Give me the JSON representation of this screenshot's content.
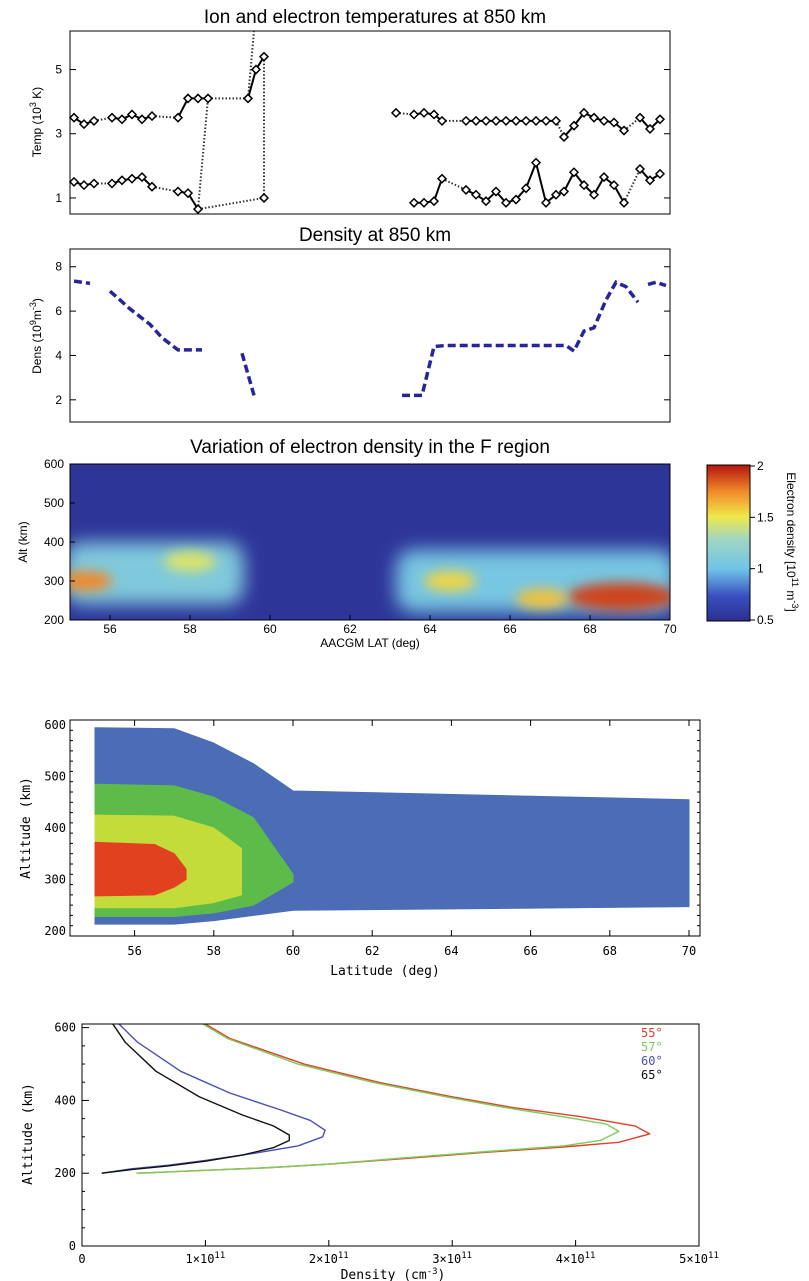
{
  "chart_data": [
    {
      "type": "line",
      "title": "Ion and electron temperatures at 850 km",
      "ylabel_main": "Temp (10",
      "ylabel_sup": "3",
      "ylabel_tail": " K)",
      "xlim": [
        55,
        70
      ],
      "ylim": [
        0.5,
        6.2
      ],
      "yticks": [
        "1",
        "3",
        "5"
      ],
      "series": [
        {
          "segments": [
            [
              [
                55.1,
                3.5
              ],
              [
                55.35,
                3.3
              ],
              [
                55.6,
                3.4
              ]
            ],
            [
              [
                56.05,
                3.5
              ],
              [
                56.3,
                3.45
              ],
              [
                56.55,
                3.6
              ],
              [
                56.8,
                3.45
              ],
              [
                57.05,
                3.55
              ]
            ],
            [
              [
                57.7,
                3.5
              ],
              [
                57.95,
                4.1
              ],
              [
                58.2,
                4.1
              ],
              [
                58.45,
                4.1
              ]
            ],
            [
              [
                59.45,
                4.1
              ],
              [
                59.65,
                5.0
              ],
              [
                59.85,
                5.4
              ]
            ],
            [
              [
                63.15,
                3.65
              ]
            ],
            [
              [
                63.6,
                3.6
              ],
              [
                63.85,
                3.65
              ],
              [
                64.1,
                3.6
              ],
              [
                64.3,
                3.4
              ]
            ],
            [
              [
                64.9,
                3.4
              ],
              [
                65.15,
                3.4
              ],
              [
                65.4,
                3.4
              ],
              [
                65.65,
                3.4
              ],
              [
                65.9,
                3.4
              ],
              [
                66.15,
                3.4
              ],
              [
                66.4,
                3.4
              ],
              [
                66.65,
                3.4
              ],
              [
                66.9,
                3.4
              ],
              [
                67.15,
                3.4
              ]
            ],
            [
              [
                67.35,
                2.9
              ],
              [
                67.6,
                3.25
              ],
              [
                67.85,
                3.65
              ],
              [
                68.1,
                3.5
              ],
              [
                68.35,
                3.4
              ],
              [
                68.6,
                3.35
              ],
              [
                68.85,
                3.1
              ]
            ],
            [
              [
                69.25,
                3.5
              ],
              [
                69.5,
                3.15
              ],
              [
                69.75,
                3.45
              ]
            ]
          ]
        },
        {
          "segments": [
            [
              [
                55.1,
                1.5
              ],
              [
                55.35,
                1.4
              ],
              [
                55.6,
                1.45
              ]
            ],
            [
              [
                56.05,
                1.45
              ],
              [
                56.3,
                1.55
              ],
              [
                56.55,
                1.6
              ],
              [
                56.8,
                1.65
              ],
              [
                57.05,
                1.35
              ]
            ],
            [
              [
                57.7,
                1.2
              ],
              [
                57.95,
                1.15
              ],
              [
                58.2,
                0.65
              ]
            ],
            [
              [
                59.85,
                1.0
              ]
            ],
            [
              [
                63.6,
                0.85
              ],
              [
                63.85,
                0.85
              ],
              [
                64.1,
                0.9
              ],
              [
                64.3,
                1.6
              ]
            ],
            [
              [
                64.9,
                1.25
              ],
              [
                65.15,
                1.1
              ],
              [
                65.4,
                0.9
              ],
              [
                65.65,
                1.2
              ],
              [
                65.9,
                0.85
              ],
              [
                66.15,
                0.95
              ],
              [
                66.4,
                1.3
              ],
              [
                66.65,
                2.1
              ],
              [
                66.9,
                0.85
              ],
              [
                67.15,
                1.1
              ],
              [
                67.35,
                1.2
              ],
              [
                67.6,
                1.8
              ],
              [
                67.85,
                1.4
              ],
              [
                68.1,
                1.1
              ],
              [
                68.35,
                1.65
              ],
              [
                68.6,
                1.4
              ],
              [
                68.85,
                0.85
              ]
            ],
            [
              [
                69.25,
                1.9
              ],
              [
                69.5,
                1.55
              ],
              [
                69.75,
                1.75
              ]
            ]
          ]
        }
      ]
    },
    {
      "type": "line",
      "title": "Density at 850 km",
      "ylabel_main": "Dens (10",
      "ylabel_sup": "9",
      "ylabel_mid": "m",
      "ylabel_sup2": "-3",
      "ylabel_tail": ")",
      "xlim": [
        55,
        70
      ],
      "ylim": [
        1.0,
        8.8
      ],
      "yticks": [
        "2",
        "4",
        "6",
        "8"
      ],
      "color": "#26269a",
      "segments": [
        [
          [
            55.1,
            7.35
          ],
          [
            55.5,
            7.25
          ]
        ],
        [
          [
            56.0,
            6.9
          ],
          [
            56.5,
            6.1
          ],
          [
            57.0,
            5.4
          ],
          [
            57.3,
            4.8
          ],
          [
            57.7,
            4.25
          ],
          [
            58.3,
            4.25
          ]
        ],
        [
          [
            59.3,
            4.1
          ],
          [
            59.6,
            2.2
          ]
        ],
        [
          [
            63.3,
            2.2
          ],
          [
            63.8,
            2.2
          ],
          [
            64.1,
            4.4
          ],
          [
            64.4,
            4.45
          ],
          [
            67.4,
            4.45
          ],
          [
            67.6,
            4.2
          ],
          [
            67.85,
            5.1
          ],
          [
            68.1,
            5.25
          ],
          [
            68.4,
            6.5
          ],
          [
            68.65,
            7.3
          ],
          [
            68.9,
            7.1
          ],
          [
            69.2,
            6.4
          ]
        ],
        [
          [
            69.45,
            7.2
          ],
          [
            69.65,
            7.3
          ],
          [
            69.9,
            7.15
          ]
        ]
      ]
    },
    {
      "type": "heatmap",
      "title": "Variation of electron density in the F region",
      "xlabel": "AACGM LAT (deg)",
      "ylabel": "Alt (km)",
      "xlim": [
        55,
        70
      ],
      "ylim": [
        200,
        600
      ],
      "xticks": [
        "56",
        "58",
        "60",
        "62",
        "64",
        "66",
        "68",
        "70"
      ],
      "yticks": [
        "200",
        "300",
        "400",
        "500",
        "600"
      ],
      "colorbar": {
        "ticks": [
          "0.5",
          "1",
          "1.5",
          "2"
        ],
        "range": [
          0.5,
          2
        ],
        "label_main": "Electron density [10",
        "label_sup": "11",
        "label_mid": " m",
        "label_sup2": "-3",
        "label_tail": "]"
      },
      "background_value": 0.55,
      "features": [
        {
          "type": "band",
          "lat": [
            55,
            59.2
          ],
          "alt": [
            240,
            400
          ],
          "value": 1.1
        },
        {
          "type": "blob",
          "lat": 55.4,
          "alt": 300,
          "value": 1.75
        },
        {
          "type": "blob",
          "lat": 58.0,
          "alt": 350,
          "value": 1.45
        },
        {
          "type": "band",
          "lat": [
            63.3,
            70
          ],
          "alt": [
            220,
            380
          ],
          "value": 1.05
        },
        {
          "type": "blob",
          "lat": 64.5,
          "alt": 300,
          "value": 1.55
        },
        {
          "type": "blob",
          "lat": 68.8,
          "alt": 260,
          "value": 1.9
        },
        {
          "type": "blob",
          "lat": 66.8,
          "alt": 255,
          "value": 1.6
        }
      ]
    },
    {
      "type": "area",
      "xlabel": "Latitude (deg)",
      "ylabel": "Altitude (km)",
      "xlim": [
        55,
        70
      ],
      "ylim": [
        190,
        610
      ],
      "xticks": [
        "56",
        "58",
        "60",
        "62",
        "64",
        "66",
        "68",
        "70"
      ],
      "yticks": [
        "200",
        "300",
        "400",
        "500",
        "600"
      ],
      "levels": [
        {
          "color": "#4a6db5",
          "upper": [
            [
              55,
              595
            ],
            [
              57,
              593
            ],
            [
              58,
              565
            ],
            [
              59,
              525
            ],
            [
              60,
              472
            ],
            [
              70,
              455
            ]
          ],
          "lower": [
            [
              55,
              213
            ],
            [
              57,
              213
            ],
            [
              58,
              220
            ],
            [
              59,
              230
            ],
            [
              60,
              240
            ],
            [
              70,
              247
            ]
          ]
        },
        {
          "color": "#5dbb4a",
          "upper": [
            [
              55,
              485
            ],
            [
              57,
              482
            ],
            [
              58,
              460
            ],
            [
              59,
              420
            ],
            [
              60,
              310
            ]
          ],
          "lower": [
            [
              55,
              228
            ],
            [
              57,
              228
            ],
            [
              58,
              235
            ],
            [
              59,
              250
            ],
            [
              60,
              295
            ]
          ]
        },
        {
          "color": "#c4dc3a",
          "upper": [
            [
              55,
              425
            ],
            [
              57,
              423
            ],
            [
              58,
              400
            ],
            [
              58.7,
              360
            ],
            [
              58.7,
              300
            ]
          ],
          "lower": [
            [
              55,
              245
            ],
            [
              57,
              245
            ],
            [
              58,
              255
            ],
            [
              58.7,
              270
            ],
            [
              58.7,
              300
            ]
          ]
        },
        {
          "color": "#e2411f",
          "upper": [
            [
              55,
              372
            ],
            [
              56.5,
              368
            ],
            [
              57,
              350
            ],
            [
              57.3,
              320
            ],
            [
              57.3,
              312
            ]
          ],
          "lower": [
            [
              55,
              268
            ],
            [
              56.5,
              270
            ],
            [
              57,
              285
            ],
            [
              57.3,
              300
            ],
            [
              57.3,
              312
            ]
          ]
        }
      ]
    },
    {
      "type": "line",
      "xlabel_main": "Density (cm",
      "xlabel_sup": "-3",
      "xlabel_tail": ")",
      "ylabel": "Altitude (km)",
      "xlim": [
        0,
        500000000000.0
      ],
      "ylim": [
        0,
        610
      ],
      "xticks": [
        "0",
        "1×10",
        "2×10",
        "3×10",
        "4×10",
        "5×10"
      ],
      "xtick_exp": "11",
      "yticks": [
        "0",
        "200",
        "400",
        "600"
      ],
      "legend": [
        "55°",
        "57°",
        "60°",
        "65°"
      ],
      "series": [
        {
          "name": "55°",
          "color": "#e0412a",
          "x": [
            46000000000.0,
            100000000000.0,
            150000000000.0,
            200000000000.0,
            260000000000.0,
            330000000000.0,
            390000000000.0,
            435000000000.0,
            460000000000.0,
            448000000000.0,
            405000000000.0,
            350000000000.0,
            300000000000.0,
            240000000000.0,
            180000000000.0,
            120000000000.0,
            100000000000.0
          ],
          "y": [
            200,
            208,
            215,
            225,
            240,
            258,
            272,
            285,
            308,
            330,
            355,
            380,
            410,
            450,
            500,
            570,
            610
          ]
        },
        {
          "name": "57°",
          "color": "#7ccc5a",
          "x": [
            44000000000.0,
            100000000000.0,
            150000000000.0,
            200000000000.0,
            260000000000.0,
            330000000000.0,
            390000000000.0,
            420000000000.0,
            435000000000.0,
            425000000000.0,
            390000000000.0,
            340000000000.0,
            295000000000.0,
            235000000000.0,
            175000000000.0,
            118000000000.0,
            98000000000.0
          ],
          "y": [
            200,
            208,
            215,
            225,
            242,
            260,
            275,
            290,
            315,
            335,
            355,
            382,
            410,
            450,
            500,
            570,
            610
          ]
        },
        {
          "name": "60°",
          "color": "#4a4fb8",
          "x": [
            16000000000.0,
            40000000000.0,
            70000000000.0,
            100000000000.0,
            140000000000.0,
            175000000000.0,
            195000000000.0,
            197000000000.0,
            185000000000.0,
            160000000000.0,
            120000000000.0,
            80000000000.0,
            45000000000.0,
            30000000000.0
          ],
          "y": [
            200,
            212,
            222,
            235,
            255,
            275,
            300,
            318,
            345,
            375,
            420,
            480,
            560,
            610
          ]
        },
        {
          "name": "65°",
          "color": "#111111",
          "x": [
            16000000000.0,
            40000000000.0,
            70000000000.0,
            100000000000.0,
            130000000000.0,
            155000000000.0,
            168000000000.0,
            168000000000.0,
            155000000000.0,
            130000000000.0,
            95000000000.0,
            60000000000.0,
            35000000000.0,
            25000000000.0
          ],
          "y": [
            200,
            210,
            220,
            233,
            250,
            270,
            290,
            305,
            330,
            360,
            410,
            480,
            560,
            610
          ]
        }
      ]
    }
  ]
}
